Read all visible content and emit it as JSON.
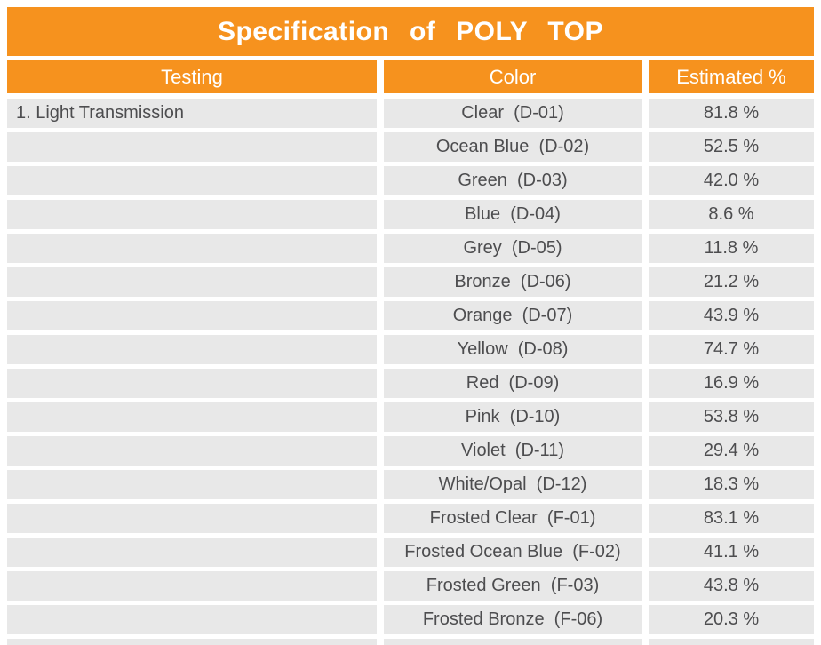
{
  "title": "Specification  of  POLY  TOP",
  "colors": {
    "accent": "#F6921E",
    "row_background": "#E8E8E8",
    "cell_text": "#4D4D4F",
    "header_text": "#FFFFFF"
  },
  "table": {
    "columns": [
      "Testing",
      "Color",
      "Estimated %"
    ],
    "rows": [
      {
        "testing": "1. Light Transmission",
        "color": "Clear  (D-01)",
        "estimated": "81.8 %"
      },
      {
        "testing": "",
        "color": "Ocean Blue  (D-02)",
        "estimated": "52.5 %"
      },
      {
        "testing": "",
        "color": "Green  (D-03)",
        "estimated": "42.0 %"
      },
      {
        "testing": "",
        "color": "Blue  (D-04)",
        "estimated": "8.6 %"
      },
      {
        "testing": "",
        "color": "Grey  (D-05)",
        "estimated": "11.8 %"
      },
      {
        "testing": "",
        "color": "Bronze  (D-06)",
        "estimated": "21.2 %"
      },
      {
        "testing": "",
        "color": "Orange  (D-07)",
        "estimated": "43.9 %"
      },
      {
        "testing": "",
        "color": "Yellow  (D-08)",
        "estimated": "74.7 %"
      },
      {
        "testing": "",
        "color": "Red  (D-09)",
        "estimated": "16.9 %"
      },
      {
        "testing": "",
        "color": "Pink  (D-10)",
        "estimated": "53.8 %"
      },
      {
        "testing": "",
        "color": "Violet  (D-11)",
        "estimated": "29.4 %"
      },
      {
        "testing": "",
        "color": "White/Opal  (D-12)",
        "estimated": "18.3 %"
      },
      {
        "testing": "",
        "color": "Frosted Clear  (F-01)",
        "estimated": "83.1 %"
      },
      {
        "testing": "",
        "color": "Frosted Ocean Blue  (F-02)",
        "estimated": "41.1 %"
      },
      {
        "testing": "",
        "color": "Frosted Green  (F-03)",
        "estimated": "43.8 %"
      },
      {
        "testing": "",
        "color": "Frosted Bronze  (F-06)",
        "estimated": "20.3 %"
      },
      {
        "testing": "",
        "color": "",
        "estimated": ""
      }
    ]
  }
}
